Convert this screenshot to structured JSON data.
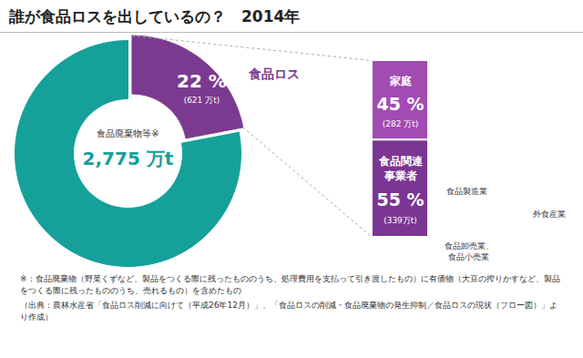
{
  "chart_data": [
    {
      "type": "pie",
      "title": "誰が食品ロスを出しているの？　2014年",
      "categories": [
        "食品ロス",
        null
      ],
      "values": [
        22,
        78
      ],
      "value_labels": [
        "22 %",
        null
      ],
      "amount_labels": [
        "(621 万t)",
        null
      ],
      "colors": [
        "#7b3a8f",
        "#15a09a"
      ],
      "data_labels": true,
      "center_label": "食品廃棄物等※",
      "center_value_label": "2,775 万t"
    },
    {
      "type": "bar",
      "stacked": true,
      "categories": [
        "家庭",
        "食品関連\n事業者"
      ],
      "values": [
        45,
        55
      ],
      "value_labels": [
        "45 %",
        "55 %"
      ],
      "amount_labels": [
        "(282 万t)",
        "(339万t)"
      ],
      "colors": [
        "#a24cb3",
        "#7b3593"
      ],
      "data_labels": true,
      "annotations": [
        "食品製造業",
        "食品卸売業、\n食品小売業",
        "外食産業"
      ]
    }
  ],
  "notes": [
    "※：食品廃棄物（野菜くずなど、製品をつくる際に残ったもののうち、処理費用を支払って引き渡したもの）に有価物（大豆の搾りかすなど、製品をつくる際に残ったもののうち、売れるもの）を含めたもの",
    "（出典：農林水産省「食品ロス削減に向けて（平成26年12月）」、「食品ロスの削減・食品廃棄物の発生抑制／食品ロスの現状（フロー図）」より作成）"
  ]
}
